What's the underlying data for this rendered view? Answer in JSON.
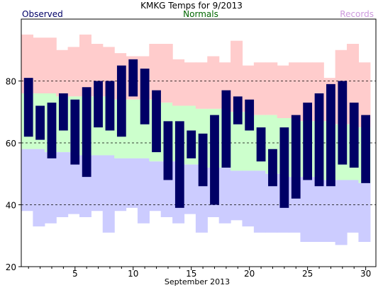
{
  "chart_data": {
    "type": "bar",
    "title": "KMKG Temps for 9/2013",
    "legend": {
      "observed": "Observed",
      "normals": "Normals",
      "records": "Records",
      "observed_color": "#000066",
      "normals_color": "#006600",
      "records_color": "#cc99dd"
    },
    "colors": {
      "observed": "#000066",
      "normal_band": "#ccffcc",
      "record_high_band": "#ffcccc",
      "record_low_band": "#ccccff",
      "gridline": "#000000"
    },
    "xlabel": "September 2013",
    "ylabel": "",
    "ylim": [
      20,
      100
    ],
    "yticks": [
      20,
      40,
      60,
      80
    ],
    "xlim": [
      1,
      30
    ],
    "xticks": [
      5,
      10,
      15,
      20,
      25,
      30
    ],
    "grid": "dashed horizontal lines at 40, 60, 80",
    "days": [
      1,
      2,
      3,
      4,
      5,
      6,
      7,
      8,
      9,
      10,
      11,
      12,
      13,
      14,
      15,
      16,
      17,
      18,
      19,
      20,
      21,
      22,
      23,
      24,
      25,
      26,
      27,
      28,
      29,
      30
    ],
    "observed_high": [
      81,
      72,
      73,
      76,
      74,
      78,
      80,
      80,
      85,
      87,
      84,
      77,
      67,
      67,
      64,
      63,
      69,
      77,
      75,
      74,
      65,
      58,
      65,
      69,
      73,
      76,
      79,
      80,
      73,
      69
    ],
    "observed_low": [
      62,
      61,
      55,
      64,
      53,
      49,
      65,
      64,
      62,
      75,
      66,
      57,
      48,
      39,
      55,
      46,
      40,
      52,
      66,
      64,
      54,
      46,
      39,
      42,
      48,
      46,
      46,
      53,
      52,
      47
    ],
    "normal_high": [
      76,
      76,
      76,
      75,
      75,
      75,
      75,
      75,
      74,
      74,
      74,
      74,
      73,
      72,
      72,
      71,
      71,
      71,
      70,
      70,
      69,
      69,
      68,
      68,
      67,
      67,
      67,
      66,
      66,
      65
    ],
    "normal_low": [
      58,
      58,
      57,
      57,
      57,
      56,
      56,
      56,
      55,
      55,
      55,
      54,
      54,
      54,
      53,
      53,
      52,
      52,
      51,
      51,
      51,
      50,
      50,
      49,
      49,
      49,
      48,
      48,
      48,
      47
    ],
    "record_high": [
      95,
      94,
      94,
      90,
      91,
      95,
      92,
      91,
      89,
      88,
      88,
      92,
      92,
      87,
      86,
      86,
      88,
      86,
      93,
      85,
      86,
      86,
      85,
      86,
      86,
      86,
      81,
      90,
      92,
      86
    ],
    "record_low": [
      38,
      33,
      34,
      36,
      37,
      36,
      38,
      31,
      38,
      39,
      34,
      38,
      36,
      34,
      37,
      31,
      36,
      34,
      35,
      33,
      31,
      31,
      31,
      31,
      28,
      28,
      28,
      27,
      31,
      28
    ]
  }
}
